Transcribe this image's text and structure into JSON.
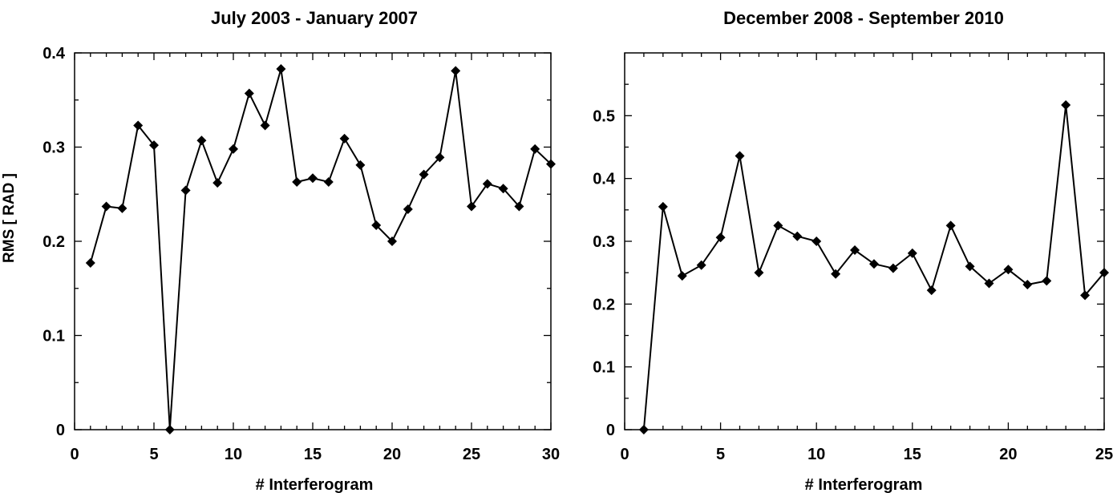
{
  "figure": {
    "ylabel": "RMS [ RAD ]"
  },
  "chart_data": [
    {
      "type": "line",
      "title": "July 2003 - January 2007",
      "xlabel": "# Interferogram",
      "ylabel": "RMS [ RAD ]",
      "xlim": [
        0,
        30
      ],
      "ylim": [
        0,
        0.4
      ],
      "xticks": [
        0,
        5,
        10,
        15,
        20,
        25,
        30
      ],
      "xtick_labels": [
        "0",
        "5",
        "10",
        "15",
        "20",
        "25",
        "30"
      ],
      "yticks": [
        0,
        0.1,
        0.2,
        0.3,
        0.4
      ],
      "ytick_labels": [
        "0",
        "0.1",
        "0.2",
        "0.3",
        "0.4"
      ],
      "grid": false,
      "marker": "diamond",
      "color": "#000000",
      "x": [
        1,
        2,
        3,
        4,
        5,
        6,
        7,
        8,
        9,
        10,
        11,
        12,
        13,
        14,
        15,
        16,
        17,
        18,
        19,
        20,
        21,
        22,
        23,
        24,
        25,
        26,
        27,
        28,
        29,
        30
      ],
      "y": [
        0.177,
        0.237,
        0.235,
        0.323,
        0.302,
        0.0,
        0.254,
        0.307,
        0.262,
        0.298,
        0.357,
        0.323,
        0.383,
        0.263,
        0.267,
        0.263,
        0.309,
        0.281,
        0.217,
        0.2,
        0.234,
        0.271,
        0.289,
        0.381,
        0.237,
        0.261,
        0.256,
        0.237,
        0.298,
        0.282
      ]
    },
    {
      "type": "line",
      "title": "December 2008 - September 2010",
      "xlabel": "# Interferogram",
      "ylabel": "",
      "xlim": [
        0,
        25
      ],
      "ylim": [
        0,
        0.6
      ],
      "xticks": [
        0,
        5,
        10,
        15,
        20,
        25
      ],
      "xtick_labels": [
        "0",
        "5",
        "10",
        "15",
        "20",
        "25"
      ],
      "yticks": [
        0,
        0.1,
        0.2,
        0.3,
        0.4,
        0.5
      ],
      "ytick_labels": [
        "0",
        "0.1",
        "0.2",
        "0.3",
        "0.4",
        "0.5"
      ],
      "grid": false,
      "marker": "diamond",
      "color": "#000000",
      "x": [
        1,
        2,
        3,
        4,
        5,
        6,
        7,
        8,
        9,
        10,
        11,
        12,
        13,
        14,
        15,
        16,
        17,
        18,
        19,
        20,
        21,
        22,
        23,
        24,
        25
      ],
      "y": [
        0.0,
        0.355,
        0.245,
        0.262,
        0.306,
        0.436,
        0.25,
        0.325,
        0.308,
        0.3,
        0.248,
        0.286,
        0.264,
        0.257,
        0.281,
        0.222,
        0.325,
        0.26,
        0.233,
        0.255,
        0.231,
        0.237,
        0.517,
        0.214,
        0.25
      ]
    }
  ]
}
